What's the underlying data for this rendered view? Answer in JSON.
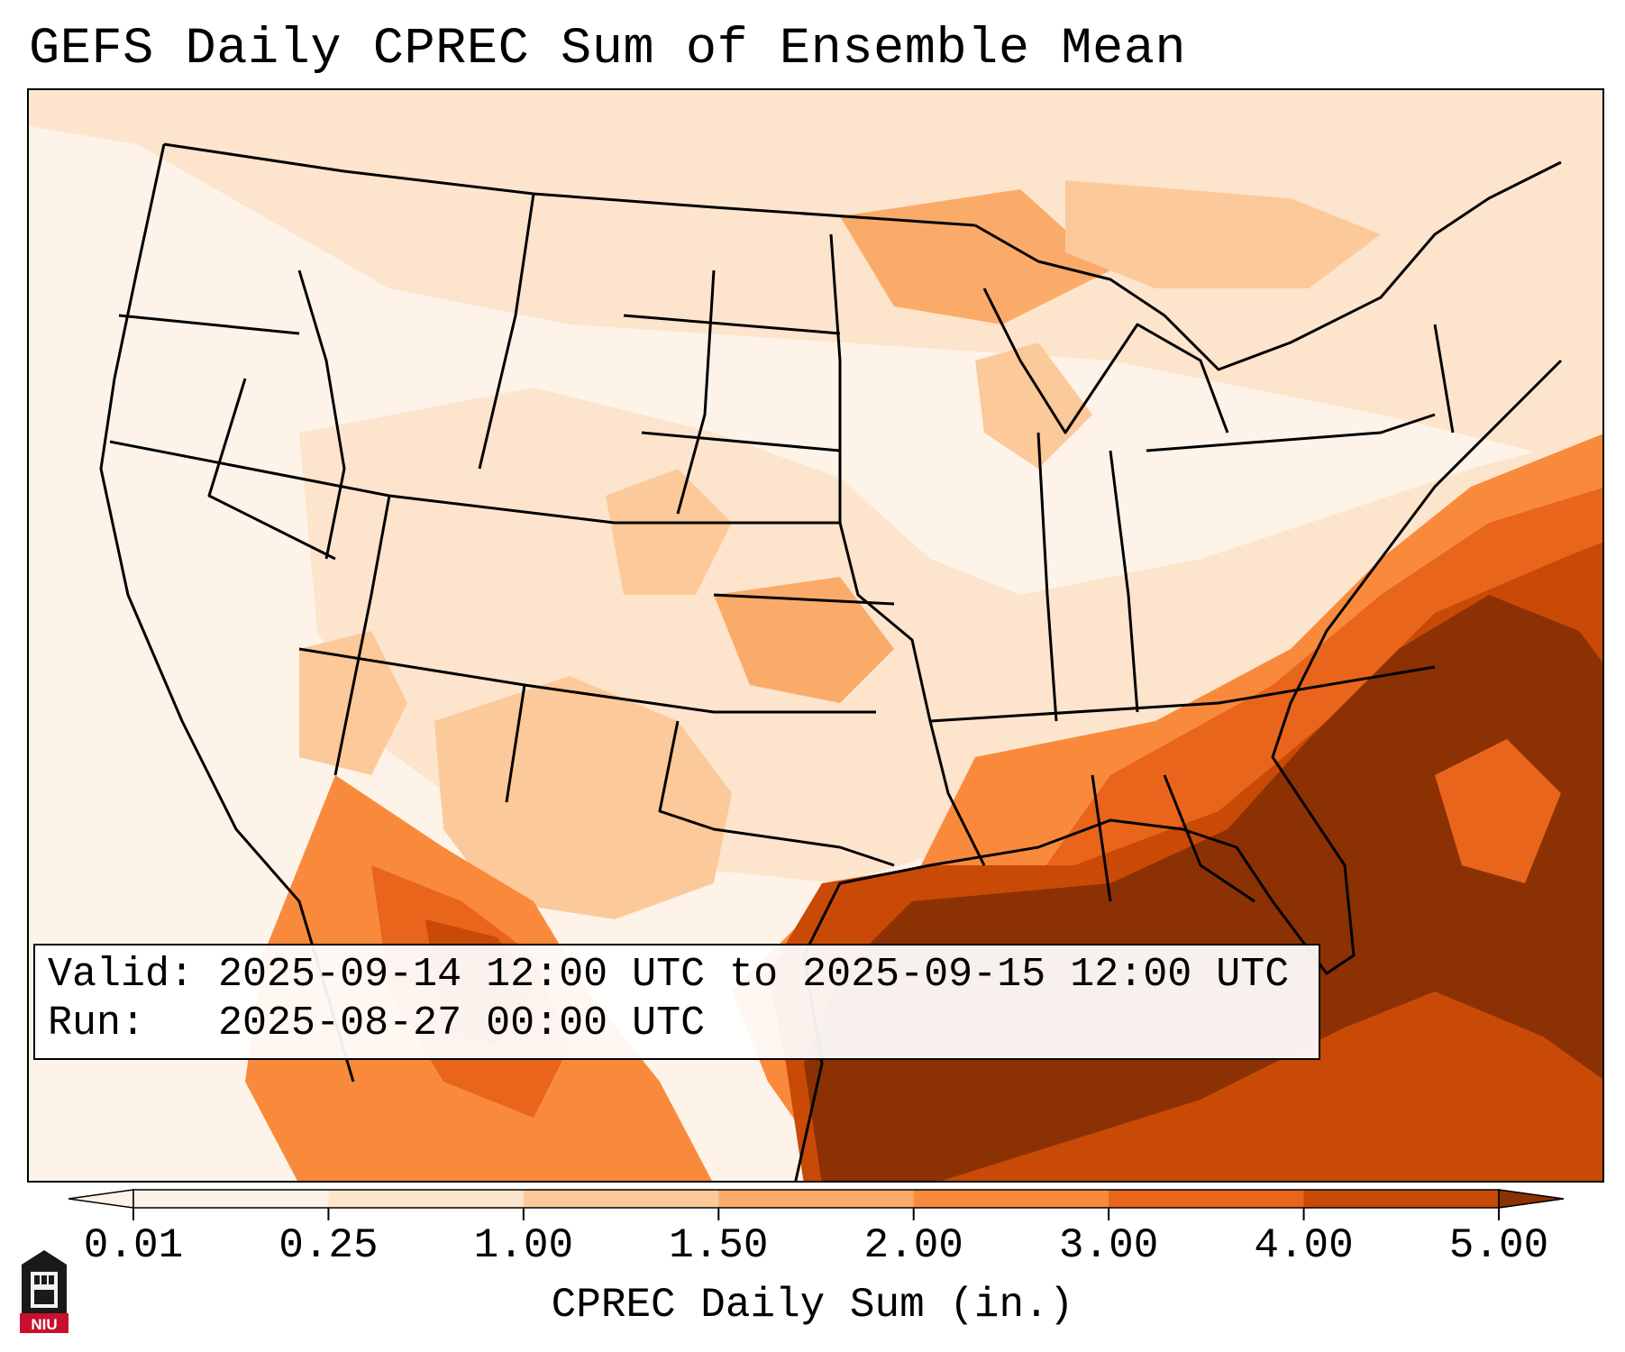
{
  "title": "GEFS Daily CPREC Sum of Ensemble Mean",
  "info": {
    "valid_label": "Valid:",
    "valid_value": "2025-09-14 12:00 UTC to 2025-09-15 12:00 UTC",
    "run_label": "Run:",
    "run_value": "2025-08-27 00:00 UTC"
  },
  "colorbar": {
    "label": "CPREC Daily Sum (in.)",
    "ticks": [
      "0.01",
      "0.25",
      "1.00",
      "1.50",
      "2.00",
      "3.00",
      "4.00",
      "5.00"
    ],
    "colors": [
      "#fef3e8",
      "#fde4cc",
      "#fcc99a",
      "#fbab69",
      "#f98a3c",
      "#e8651b",
      "#c94a06",
      "#8c3103"
    ],
    "extend": "both"
  },
  "map": {
    "projection": "Lambert conformal (CONUS)",
    "fill_colors": {
      "none": "#fef3e8",
      "light": "#fde4cc",
      "medium": "#fcc99a",
      "moderate": "#fbab69",
      "heavy": "#f98a3c",
      "very_heavy": "#e8651b",
      "extreme": "#c94a06",
      "max": "#8c3103"
    }
  },
  "logo": {
    "text": "NIU"
  }
}
